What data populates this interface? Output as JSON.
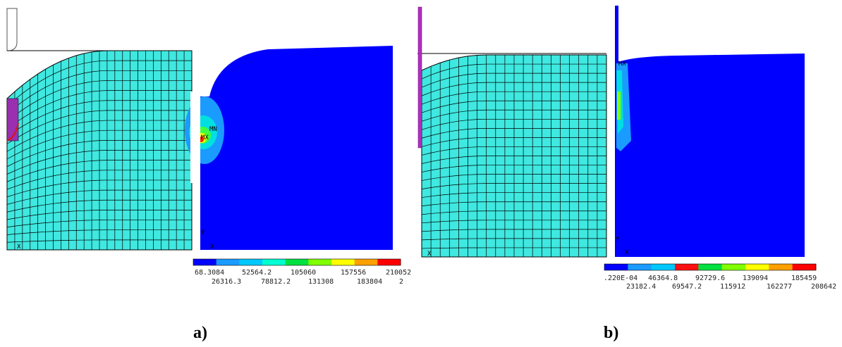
{
  "panels": [
    {
      "label": "a)",
      "notes": [
        "MN",
        "MX",
        "Y",
        "X",
        "X"
      ],
      "legend_top": [
        "68.3084",
        "52564.2",
        "105060",
        "157556",
        "210052"
      ],
      "legend_bottom": [
        "26316.3",
        "78812.2",
        "131308",
        "183804",
        "2"
      ]
    },
    {
      "label": "b)",
      "notes": [
        "MX",
        "Y",
        "X",
        "X"
      ],
      "legend_top": [
        ".220E-04",
        "46364.8",
        "92729.6",
        "139094",
        "185459"
      ],
      "legend_bottom": [
        "23182.4",
        "69547.2",
        "115912",
        "162277",
        "208642"
      ]
    }
  ]
}
